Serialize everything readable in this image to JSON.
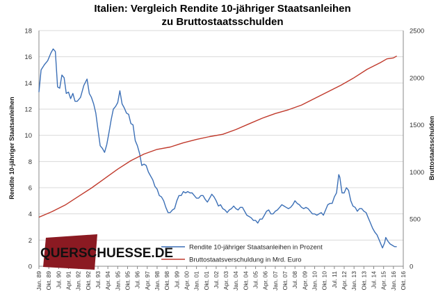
{
  "chart_data": {
    "type": "line",
    "title_lines": [
      "Italien: Vergleich Rendite 10-jähriger Staatsanleihen",
      "zu Bruttostaatsschulden"
    ],
    "ylabel_left": "Rendite 10-jähriger Staatsanleihen",
    "ylabel_right": "Bruttostaatsschulden",
    "ylim_left": [
      0,
      18
    ],
    "yticks_left": [
      0,
      2,
      4,
      6,
      8,
      10,
      12,
      14,
      16,
      18
    ],
    "ylim_right": [
      0,
      2500
    ],
    "yticks_right": [
      0,
      500,
      1000,
      1500,
      2000,
      2500
    ],
    "x_start": "1989-01",
    "x_end": "2016-10",
    "xtick_labels": [
      "Jan. 89",
      "Okt. 89",
      "Jul. 90",
      "Apr. 91",
      "Jan. 92",
      "Okt. 92",
      "Jul. 93",
      "Apr. 94",
      "Jan. 95",
      "Okt. 95",
      "Jul. 96",
      "Apr. 97",
      "Jan. 98",
      "Okt. 98",
      "Jul. 99",
      "Apr. 00",
      "Jan. 01",
      "Okt. 01",
      "Jul. 02",
      "Apr. 03",
      "Jan. 04",
      "Okt. 04",
      "Jul. 05",
      "Apr. 06",
      "Jan. 07",
      "Okt. 07",
      "Jul. 08",
      "Apr. 09",
      "Jan. 10",
      "Okt. 10",
      "Jul. 11",
      "Apr. 12",
      "Jan. 13",
      "Okt. 13",
      "Jul. 14",
      "Apr. 15",
      "Jan. 16",
      "Okt. 16"
    ],
    "grid": "horizontal",
    "legend_position": "bottom-center",
    "series": [
      {
        "name": "Rendite 10-jähriger Staatsanleihen in Prozent",
        "axis": "left",
        "color": "#3b6fb6",
        "points": [
          [
            "1989-01",
            13.3
          ],
          [
            "1989-03",
            15.0
          ],
          [
            "1989-06",
            15.4
          ],
          [
            "1989-09",
            15.7
          ],
          [
            "1989-12",
            16.3
          ],
          [
            "1990-02",
            16.6
          ],
          [
            "1990-04",
            16.4
          ],
          [
            "1990-06",
            13.7
          ],
          [
            "1990-08",
            13.6
          ],
          [
            "1990-10",
            14.6
          ],
          [
            "1990-12",
            14.4
          ],
          [
            "1991-02",
            13.2
          ],
          [
            "1991-04",
            13.3
          ],
          [
            "1991-06",
            12.8
          ],
          [
            "1991-08",
            13.2
          ],
          [
            "1991-10",
            12.6
          ],
          [
            "1991-12",
            12.6
          ],
          [
            "1992-03",
            12.9
          ],
          [
            "1992-06",
            13.8
          ],
          [
            "1992-09",
            14.3
          ],
          [
            "1992-11",
            13.2
          ],
          [
            "1993-01",
            12.9
          ],
          [
            "1993-03",
            12.4
          ],
          [
            "1993-05",
            11.7
          ],
          [
            "1993-07",
            10.4
          ],
          [
            "1993-09",
            9.2
          ],
          [
            "1993-11",
            9.0
          ],
          [
            "1994-01",
            8.7
          ],
          [
            "1994-03",
            9.3
          ],
          [
            "1994-05",
            10.2
          ],
          [
            "1994-07",
            11.2
          ],
          [
            "1994-09",
            12.0
          ],
          [
            "1994-11",
            12.2
          ],
          [
            "1995-01",
            12.5
          ],
          [
            "1995-03",
            13.4
          ],
          [
            "1995-05",
            12.4
          ],
          [
            "1995-07",
            12.1
          ],
          [
            "1995-09",
            11.7
          ],
          [
            "1995-11",
            11.6
          ],
          [
            "1996-01",
            10.9
          ],
          [
            "1996-03",
            10.8
          ],
          [
            "1996-05",
            9.6
          ],
          [
            "1996-07",
            9.2
          ],
          [
            "1996-09",
            8.6
          ],
          [
            "1996-11",
            7.7
          ],
          [
            "1997-01",
            7.8
          ],
          [
            "1997-03",
            7.7
          ],
          [
            "1997-05",
            7.2
          ],
          [
            "1997-07",
            6.9
          ],
          [
            "1997-09",
            6.6
          ],
          [
            "1997-11",
            6.1
          ],
          [
            "1998-01",
            5.9
          ],
          [
            "1998-03",
            5.4
          ],
          [
            "1998-05",
            5.3
          ],
          [
            "1998-07",
            5.0
          ],
          [
            "1998-09",
            4.5
          ],
          [
            "1998-11",
            4.1
          ],
          [
            "1999-01",
            4.1
          ],
          [
            "1999-03",
            4.3
          ],
          [
            "1999-05",
            4.4
          ],
          [
            "1999-07",
            5.0
          ],
          [
            "1999-09",
            5.4
          ],
          [
            "1999-11",
            5.4
          ],
          [
            "2000-01",
            5.7
          ],
          [
            "2000-03",
            5.6
          ],
          [
            "2000-05",
            5.7
          ],
          [
            "2000-07",
            5.6
          ],
          [
            "2000-09",
            5.6
          ],
          [
            "2000-11",
            5.4
          ],
          [
            "2001-01",
            5.2
          ],
          [
            "2001-03",
            5.2
          ],
          [
            "2001-05",
            5.4
          ],
          [
            "2001-07",
            5.4
          ],
          [
            "2001-09",
            5.1
          ],
          [
            "2001-11",
            4.9
          ],
          [
            "2002-01",
            5.2
          ],
          [
            "2002-03",
            5.5
          ],
          [
            "2002-05",
            5.3
          ],
          [
            "2002-07",
            5.0
          ],
          [
            "2002-09",
            4.6
          ],
          [
            "2002-11",
            4.7
          ],
          [
            "2003-01",
            4.4
          ],
          [
            "2003-03",
            4.3
          ],
          [
            "2003-05",
            4.1
          ],
          [
            "2003-07",
            4.3
          ],
          [
            "2003-09",
            4.4
          ],
          [
            "2003-11",
            4.6
          ],
          [
            "2004-01",
            4.4
          ],
          [
            "2004-03",
            4.3
          ],
          [
            "2004-05",
            4.5
          ],
          [
            "2004-07",
            4.5
          ],
          [
            "2004-09",
            4.2
          ],
          [
            "2004-11",
            3.9
          ],
          [
            "2005-01",
            3.8
          ],
          [
            "2005-03",
            3.7
          ],
          [
            "2005-05",
            3.5
          ],
          [
            "2005-07",
            3.5
          ],
          [
            "2005-09",
            3.3
          ],
          [
            "2005-11",
            3.6
          ],
          [
            "2006-01",
            3.6
          ],
          [
            "2006-03",
            3.9
          ],
          [
            "2006-05",
            4.2
          ],
          [
            "2006-07",
            4.3
          ],
          [
            "2006-09",
            4.0
          ],
          [
            "2006-11",
            4.0
          ],
          [
            "2007-01",
            4.2
          ],
          [
            "2007-03",
            4.3
          ],
          [
            "2007-05",
            4.5
          ],
          [
            "2007-07",
            4.7
          ],
          [
            "2007-09",
            4.6
          ],
          [
            "2007-11",
            4.5
          ],
          [
            "2008-01",
            4.4
          ],
          [
            "2008-03",
            4.5
          ],
          [
            "2008-05",
            4.7
          ],
          [
            "2008-07",
            5.0
          ],
          [
            "2008-09",
            4.8
          ],
          [
            "2008-11",
            4.7
          ],
          [
            "2009-01",
            4.5
          ],
          [
            "2009-03",
            4.4
          ],
          [
            "2009-05",
            4.5
          ],
          [
            "2009-07",
            4.4
          ],
          [
            "2009-09",
            4.2
          ],
          [
            "2009-11",
            4.0
          ],
          [
            "2010-01",
            4.0
          ],
          [
            "2010-03",
            3.9
          ],
          [
            "2010-05",
            4.0
          ],
          [
            "2010-07",
            4.1
          ],
          [
            "2010-09",
            3.9
          ],
          [
            "2010-11",
            4.3
          ],
          [
            "2011-01",
            4.7
          ],
          [
            "2011-03",
            4.8
          ],
          [
            "2011-05",
            4.8
          ],
          [
            "2011-07",
            5.3
          ],
          [
            "2011-09",
            5.6
          ],
          [
            "2011-11",
            7.0
          ],
          [
            "2011-12",
            6.8
          ],
          [
            "2012-02",
            5.6
          ],
          [
            "2012-04",
            5.6
          ],
          [
            "2012-06",
            6.0
          ],
          [
            "2012-08",
            5.8
          ],
          [
            "2012-10",
            5.0
          ],
          [
            "2012-12",
            4.6
          ],
          [
            "2013-02",
            4.5
          ],
          [
            "2013-04",
            4.2
          ],
          [
            "2013-06",
            4.4
          ],
          [
            "2013-08",
            4.4
          ],
          [
            "2013-10",
            4.2
          ],
          [
            "2013-12",
            4.1
          ],
          [
            "2014-02",
            3.7
          ],
          [
            "2014-04",
            3.3
          ],
          [
            "2014-06",
            2.9
          ],
          [
            "2014-08",
            2.6
          ],
          [
            "2014-10",
            2.4
          ],
          [
            "2014-12",
            2.0
          ],
          [
            "2015-02",
            1.6
          ],
          [
            "2015-03",
            1.4
          ],
          [
            "2015-05",
            1.8
          ],
          [
            "2015-06",
            2.2
          ],
          [
            "2015-08",
            1.9
          ],
          [
            "2015-10",
            1.7
          ],
          [
            "2015-12",
            1.6
          ],
          [
            "2016-02",
            1.5
          ],
          [
            "2016-04",
            1.5
          ]
        ]
      },
      {
        "name": "Bruttostaatsverschuldung in Mrd. Euro",
        "axis": "right",
        "color": "#c0392b",
        "points": [
          [
            "1989-01",
            520
          ],
          [
            "1990-01",
            580
          ],
          [
            "1991-01",
            650
          ],
          [
            "1992-01",
            740
          ],
          [
            "1993-01",
            830
          ],
          [
            "1994-01",
            930
          ],
          [
            "1995-01",
            1030
          ],
          [
            "1996-01",
            1120
          ],
          [
            "1997-01",
            1190
          ],
          [
            "1998-01",
            1240
          ],
          [
            "1999-01",
            1265
          ],
          [
            "2000-01",
            1310
          ],
          [
            "2001-01",
            1345
          ],
          [
            "2002-01",
            1375
          ],
          [
            "2003-01",
            1400
          ],
          [
            "2004-01",
            1450
          ],
          [
            "2005-01",
            1510
          ],
          [
            "2006-01",
            1570
          ],
          [
            "2007-01",
            1620
          ],
          [
            "2008-01",
            1660
          ],
          [
            "2009-01",
            1710
          ],
          [
            "2010-01",
            1780
          ],
          [
            "2011-01",
            1850
          ],
          [
            "2012-01",
            1920
          ],
          [
            "2013-01",
            2000
          ],
          [
            "2014-01",
            2090
          ],
          [
            "2015-01",
            2160
          ],
          [
            "2015-07",
            2200
          ],
          [
            "2016-01",
            2210
          ],
          [
            "2016-04",
            2230
          ]
        ]
      }
    ]
  },
  "logo": {
    "text": "QUERSCHUESSE.DE"
  }
}
